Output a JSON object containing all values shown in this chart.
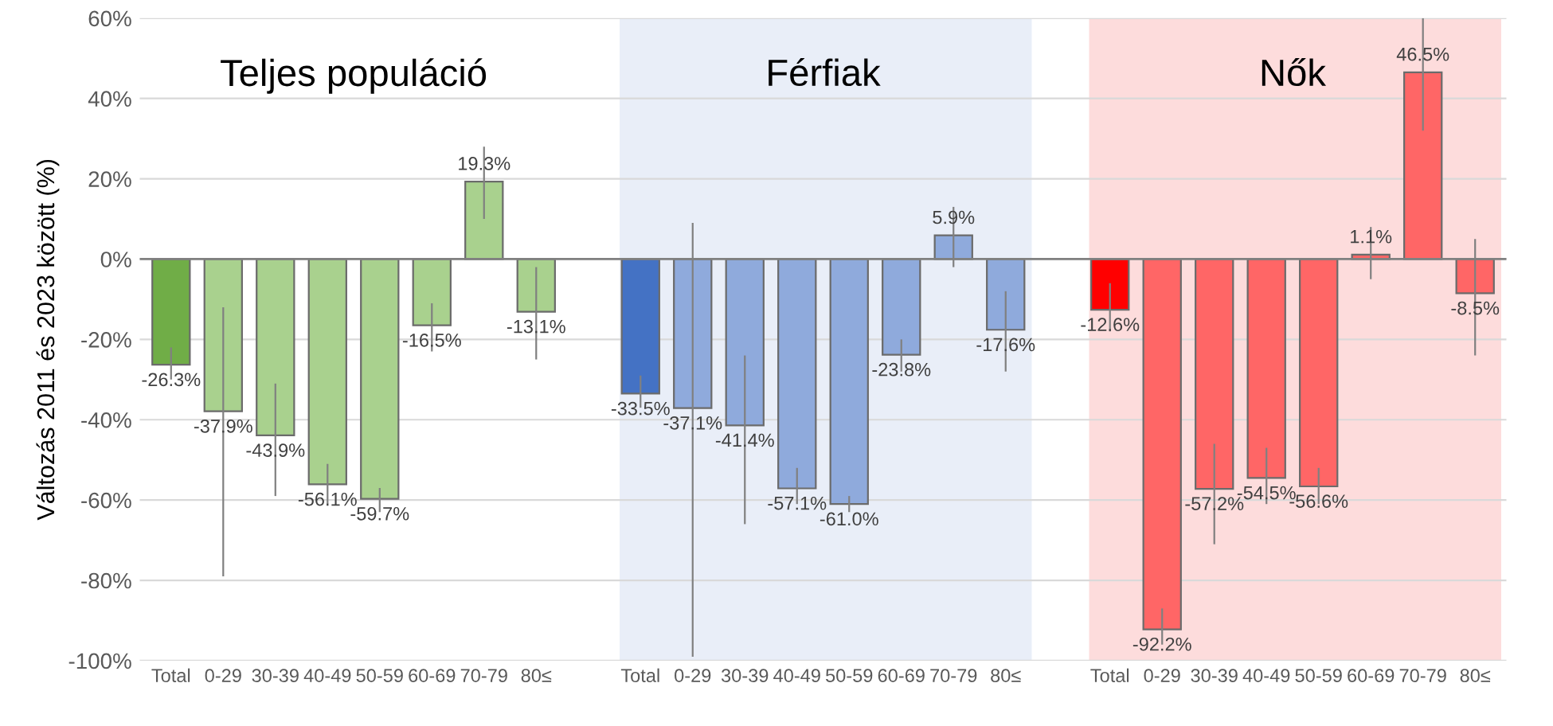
{
  "chart_data": {
    "type": "bar",
    "ylabel": "Változás 2011 és 2023 között (%)",
    "categories": [
      "Total",
      "0-29",
      "30-39",
      "40-49",
      "50-59",
      "60-69",
      "70-79",
      "80≤",
      null,
      "Total",
      "0-29",
      "30-39",
      "40-49",
      "50-59",
      "60-69",
      "70-79",
      "80≤",
      null,
      "Total",
      "0-29",
      "30-39",
      "40-49",
      "50-59",
      "60-69",
      "70-79",
      "80≤"
    ],
    "values": [
      -26.3,
      -37.9,
      -43.9,
      -56.1,
      -59.7,
      -16.5,
      19.3,
      -13.1,
      null,
      -33.5,
      -37.1,
      -41.4,
      -57.1,
      -61.0,
      -23.8,
      5.9,
      -17.6,
      null,
      -12.6,
      -92.2,
      -57.2,
      -54.5,
      -56.6,
      1.1,
      46.5,
      -8.5
    ],
    "value_labels": [
      "-26.3%",
      "-37.9%",
      "-43.9%",
      "-56.1%",
      "-59.7%",
      "-16.5%",
      "19.3%",
      "-13.1%",
      null,
      "-33.5%",
      "-37.1%",
      "-41.4%",
      "-57.1%",
      "-61.0%",
      "-23.8%",
      "5.9%",
      "-17.6%",
      null,
      "-12.6%",
      "-92.2%",
      "-57.2%",
      "-54.5%",
      "-56.6%",
      "1.1%",
      "46.5%",
      "-8.5%"
    ],
    "colors": [
      "#70ad47",
      "#a9d18e",
      "#a9d18e",
      "#a9d18e",
      "#a9d18e",
      "#a9d18e",
      "#a9d18e",
      "#a9d18e",
      null,
      "#4472c4",
      "#8faadc",
      "#8faadc",
      "#8faadc",
      "#8faadc",
      "#8faadc",
      "#8faadc",
      "#8faadc",
      null,
      "#ff0000",
      "#ff6666",
      "#ff6666",
      "#ff6666",
      "#ff6666",
      "#ff6666",
      "#ff6666",
      "#ff6666"
    ],
    "errors": [
      [
        -30,
        -22
      ],
      [
        -79,
        -12
      ],
      [
        -59,
        -31
      ],
      [
        -61,
        -51
      ],
      [
        -63,
        -57
      ],
      [
        -23,
        -11
      ],
      [
        10,
        28
      ],
      [
        -25,
        -2
      ],
      null,
      [
        -37,
        -29
      ],
      [
        -99,
        9
      ],
      [
        -66,
        -24
      ],
      [
        -61,
        -52
      ],
      [
        -63,
        -59
      ],
      [
        -28,
        -20
      ],
      [
        -2,
        13
      ],
      [
        -28,
        -8
      ],
      null,
      [
        -18,
        -6
      ],
      [
        -96,
        -87
      ],
      [
        -71,
        -46
      ],
      [
        -61,
        -47
      ],
      [
        -61,
        -52
      ],
      [
        -5,
        8
      ],
      [
        32,
        60
      ],
      [
        -24,
        5
      ]
    ],
    "annotations": [
      "Teljes populáció",
      "Férfiak",
      "Nők"
    ],
    "ylim": [
      -100,
      60
    ],
    "yticks": [
      {
        "value": -100,
        "label": "-100%"
      },
      {
        "value": -80,
        "label": "-80%"
      },
      {
        "value": -60,
        "label": "-60%"
      },
      {
        "value": -40,
        "label": "-40%"
      },
      {
        "value": -20,
        "label": "-20%"
      },
      {
        "value": 0,
        "label": "0%"
      },
      {
        "value": 20,
        "label": "20%"
      },
      {
        "value": 40,
        "label": "40%"
      },
      {
        "value": 60,
        "label": "60%"
      }
    ],
    "grid": "y",
    "legend": false
  }
}
